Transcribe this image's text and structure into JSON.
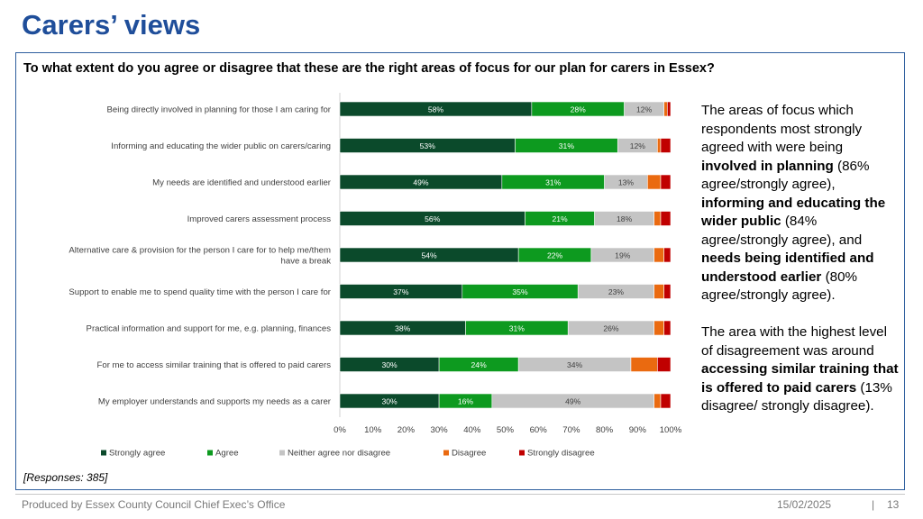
{
  "slide": {
    "title": "Carers’ views",
    "question": "To what extent do you agree or disagree that these are the right areas of focus for our plan for carers in Essex?",
    "responses": "[Responses: 385]"
  },
  "side_text": {
    "p1_pre": "The areas of focus which respondents most strongly agreed with were being ",
    "p1_b1": "involved in planning",
    "p1_t1": " (86% agree/strongly agree), ",
    "p1_b2": "informing and educating the wider public",
    "p1_t2": " (84% agree/strongly agree), and ",
    "p1_b3": "needs being identified and understood earlier",
    "p1_t3": " (80% agree/strongly agree).",
    "p2_pre": "The area with the highest level of disagreement was around ",
    "p2_b1": "accessing similar training that is offered to paid carers",
    "p2_t1": " (13% disagree/ strongly disagree)."
  },
  "footer": {
    "left": "Produced by Essex County Council Chief Exec’s Office",
    "date": "15/02/2025",
    "separator": "|",
    "page": "13"
  },
  "chart_data": {
    "type": "bar",
    "orientation": "horizontal",
    "stacked": "percent",
    "categories": [
      "Being directly involved in planning for those I am caring for",
      "Informing and educating the wider public on carers/caring",
      "My needs are identified and understood earlier",
      "Improved carers assessment process",
      "Alternative care & provision for the person I care for to help me/them have a break",
      "Support to enable me to spend quality time with the person I care for",
      "Practical information and support for me, e.g. planning, finances",
      "For me to access similar training that is offered to paid carers",
      "My employer understands and supports my needs as a carer"
    ],
    "category_lines": [
      [
        "Being directly involved in planning for those I am caring for"
      ],
      [
        "Informing and educating the wider public on carers/caring"
      ],
      [
        "My needs are identified and understood earlier"
      ],
      [
        "Improved carers assessment process"
      ],
      [
        "Alternative care & provision for the person I care for to help me/them",
        "have a break"
      ],
      [
        "Support to enable me to spend quality time with the person I care for"
      ],
      [
        "Practical information and support for me, e.g. planning, finances"
      ],
      [
        "For me to access similar training that is offered to paid carers"
      ],
      [
        "My employer understands and supports my needs as a carer"
      ]
    ],
    "series": [
      {
        "name": "Strongly agree",
        "color": "#0b4a2b",
        "values": [
          58,
          53,
          49,
          56,
          54,
          37,
          38,
          30,
          30
        ]
      },
      {
        "name": "Agree",
        "color": "#0d9a1f",
        "values": [
          28,
          31,
          31,
          21,
          22,
          35,
          31,
          24,
          16
        ]
      },
      {
        "name": "Neither agree nor disagree",
        "color": "#c4c4c4",
        "values": [
          12,
          12,
          13,
          18,
          19,
          23,
          26,
          34,
          49
        ]
      },
      {
        "name": "Disagree",
        "color": "#ea6a10",
        "values": [
          1,
          1,
          4,
          2,
          3,
          3,
          3,
          8,
          2
        ]
      },
      {
        "name": "Strongly disagree",
        "color": "#c00000",
        "values": [
          1,
          3,
          3,
          3,
          2,
          2,
          2,
          4,
          3
        ]
      }
    ],
    "data_labels": [
      [
        "58%",
        "28%",
        "12%",
        "",
        ""
      ],
      [
        "53%",
        "31%",
        "12%",
        "",
        ""
      ],
      [
        "49%",
        "31%",
        "13%",
        "",
        ""
      ],
      [
        "56%",
        "21%",
        "18%",
        "",
        ""
      ],
      [
        "54%",
        "22%",
        "19%",
        "",
        ""
      ],
      [
        "37%",
        "35%",
        "23%",
        "",
        ""
      ],
      [
        "38%",
        "31%",
        "26%",
        "",
        ""
      ],
      [
        "30%",
        "24%",
        "34%",
        "",
        ""
      ],
      [
        "30%",
        "16%",
        "49%",
        "",
        ""
      ]
    ],
    "x_ticks": [
      "0%",
      "10%",
      "20%",
      "30%",
      "40%",
      "50%",
      "60%",
      "70%",
      "80%",
      "90%",
      "100%"
    ],
    "xlim": [
      0,
      100
    ],
    "legend_position": "bottom"
  }
}
